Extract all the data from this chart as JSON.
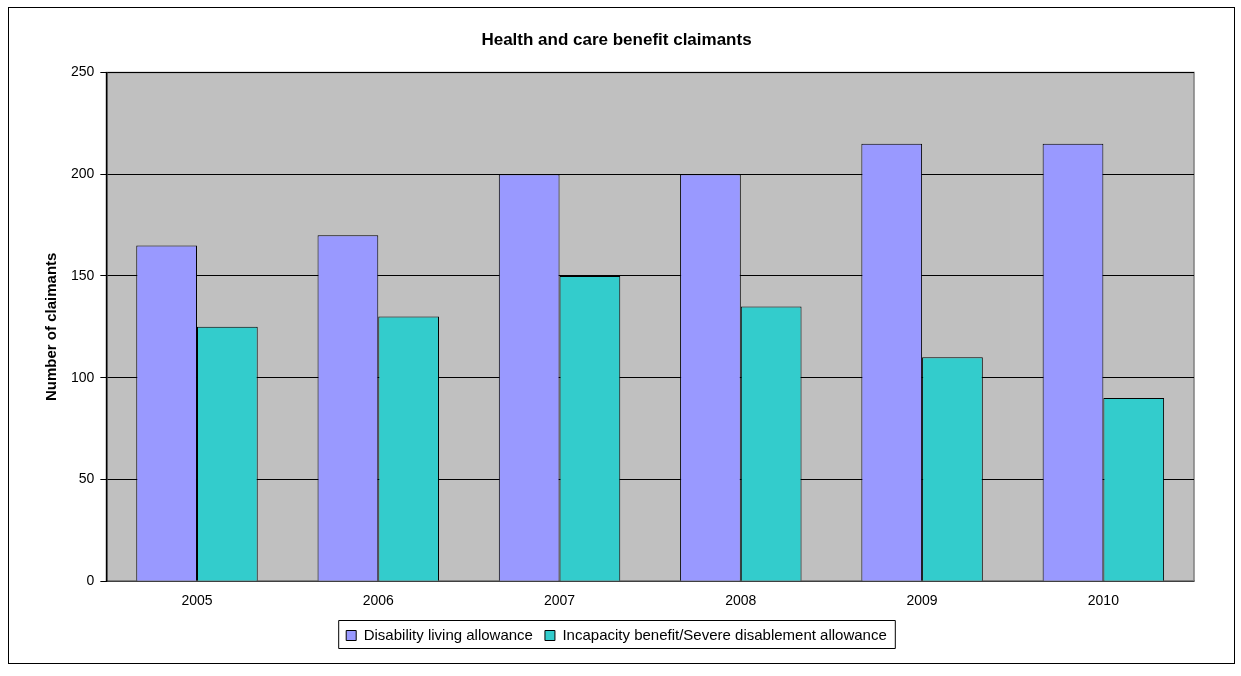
{
  "chart_data": {
    "type": "bar",
    "title": "Health and care benefit claimants",
    "ylabel": "Number of claimants",
    "categories": [
      "2005",
      "2006",
      "2007",
      "2008",
      "2009",
      "2010"
    ],
    "series": [
      {
        "name": "Disability living allowance",
        "color": "#9999ff",
        "values": [
          165,
          170,
          200,
          200,
          215,
          215
        ]
      },
      {
        "name": "Incapacity benefit/Severe disablement allowance",
        "color": "#33cccc",
        "values": [
          125,
          130,
          150,
          135,
          110,
          90
        ]
      }
    ],
    "ylim": [
      0,
      250
    ],
    "yticks": [
      0,
      50,
      100,
      150,
      200,
      250
    ],
    "grid": "y",
    "legend": "bottom"
  }
}
